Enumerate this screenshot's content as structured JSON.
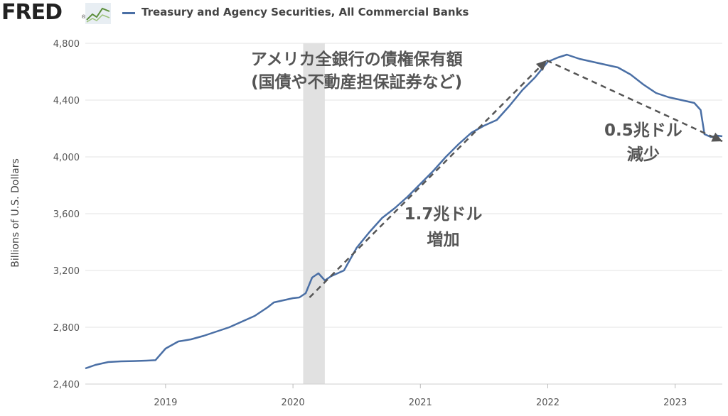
{
  "header": {
    "logo_text": "FRED",
    "logo_reg": "®",
    "logo_icon": "line-chart-icon"
  },
  "colors": {
    "series": "#4a6fa5",
    "recession": "#e1e1e1",
    "grid": "#e3e3e3",
    "annotation": "#555555"
  },
  "chart_data": {
    "type": "line",
    "title": "",
    "xlabel": "",
    "ylabel": "Billions of U.S. Dollars",
    "xlim": [
      2018.37,
      2023.37
    ],
    "ylim": [
      2400,
      4800
    ],
    "yticks": [
      "2,400",
      "2,800",
      "3,200",
      "3,600",
      "4,000",
      "4,400",
      "4,800"
    ],
    "ytick_values": [
      2400,
      2800,
      3200,
      3600,
      4000,
      4400,
      4800
    ],
    "xticks": [
      "2019",
      "2020",
      "2021",
      "2022",
      "2023"
    ],
    "xtick_values": [
      2019,
      2020,
      2021,
      2022,
      2023
    ],
    "grid": "horizontal",
    "legend": "top-left",
    "recession_shading": [
      {
        "start": 2020.08,
        "end": 2020.25
      }
    ],
    "series": [
      {
        "name": "Treasury and Agency Securities, All Commercial Banks",
        "points": [
          [
            2018.37,
            2510
          ],
          [
            2018.45,
            2535
          ],
          [
            2018.55,
            2555
          ],
          [
            2018.65,
            2560
          ],
          [
            2018.75,
            2562
          ],
          [
            2018.85,
            2565
          ],
          [
            2018.92,
            2568
          ],
          [
            2019.0,
            2650
          ],
          [
            2019.1,
            2700
          ],
          [
            2019.2,
            2715
          ],
          [
            2019.3,
            2740
          ],
          [
            2019.4,
            2770
          ],
          [
            2019.5,
            2800
          ],
          [
            2019.6,
            2840
          ],
          [
            2019.7,
            2880
          ],
          [
            2019.8,
            2940
          ],
          [
            2019.85,
            2975
          ],
          [
            2019.9,
            2985
          ],
          [
            2020.0,
            3005
          ],
          [
            2020.05,
            3010
          ],
          [
            2020.1,
            3040
          ],
          [
            2020.15,
            3150
          ],
          [
            2020.2,
            3180
          ],
          [
            2020.25,
            3130
          ],
          [
            2020.3,
            3160
          ],
          [
            2020.4,
            3200
          ],
          [
            2020.5,
            3360
          ],
          [
            2020.6,
            3470
          ],
          [
            2020.7,
            3570
          ],
          [
            2020.8,
            3640
          ],
          [
            2020.9,
            3720
          ],
          [
            2021.0,
            3810
          ],
          [
            2021.1,
            3900
          ],
          [
            2021.2,
            4000
          ],
          [
            2021.3,
            4090
          ],
          [
            2021.4,
            4170
          ],
          [
            2021.5,
            4220
          ],
          [
            2021.6,
            4260
          ],
          [
            2021.7,
            4360
          ],
          [
            2021.8,
            4470
          ],
          [
            2021.9,
            4560
          ],
          [
            2022.0,
            4670
          ],
          [
            2022.08,
            4700
          ],
          [
            2022.15,
            4720
          ],
          [
            2022.25,
            4690
          ],
          [
            2022.35,
            4670
          ],
          [
            2022.45,
            4650
          ],
          [
            2022.55,
            4630
          ],
          [
            2022.65,
            4580
          ],
          [
            2022.75,
            4510
          ],
          [
            2022.85,
            4450
          ],
          [
            2022.95,
            4420
          ],
          [
            2023.05,
            4400
          ],
          [
            2023.15,
            4380
          ],
          [
            2023.2,
            4330
          ],
          [
            2023.23,
            4160
          ],
          [
            2023.28,
            4140
          ],
          [
            2023.33,
            4150
          ],
          [
            2023.37,
            4145
          ]
        ]
      }
    ],
    "annotations": [
      {
        "text": "アメリカ全銀行の債権保有額",
        "x": 2020.5,
        "y": 4650
      },
      {
        "text": "(国債や不動産担保証券など)",
        "x": 2020.5,
        "y": 4490
      },
      {
        "text": "1.7兆ドル",
        "x": 2021.18,
        "y": 3560
      },
      {
        "text": "増加",
        "x": 2021.18,
        "y": 3380
      },
      {
        "text": "0.5兆ドル",
        "x": 2022.75,
        "y": 4150
      },
      {
        "text": "減少",
        "x": 2022.75,
        "y": 3980
      }
    ],
    "arrows": [
      {
        "from": [
          2020.13,
          3010
        ],
        "to": [
          2021.99,
          4680
        ]
      },
      {
        "from": [
          2021.99,
          4680
        ],
        "to": [
          2023.37,
          4110
        ]
      }
    ]
  }
}
